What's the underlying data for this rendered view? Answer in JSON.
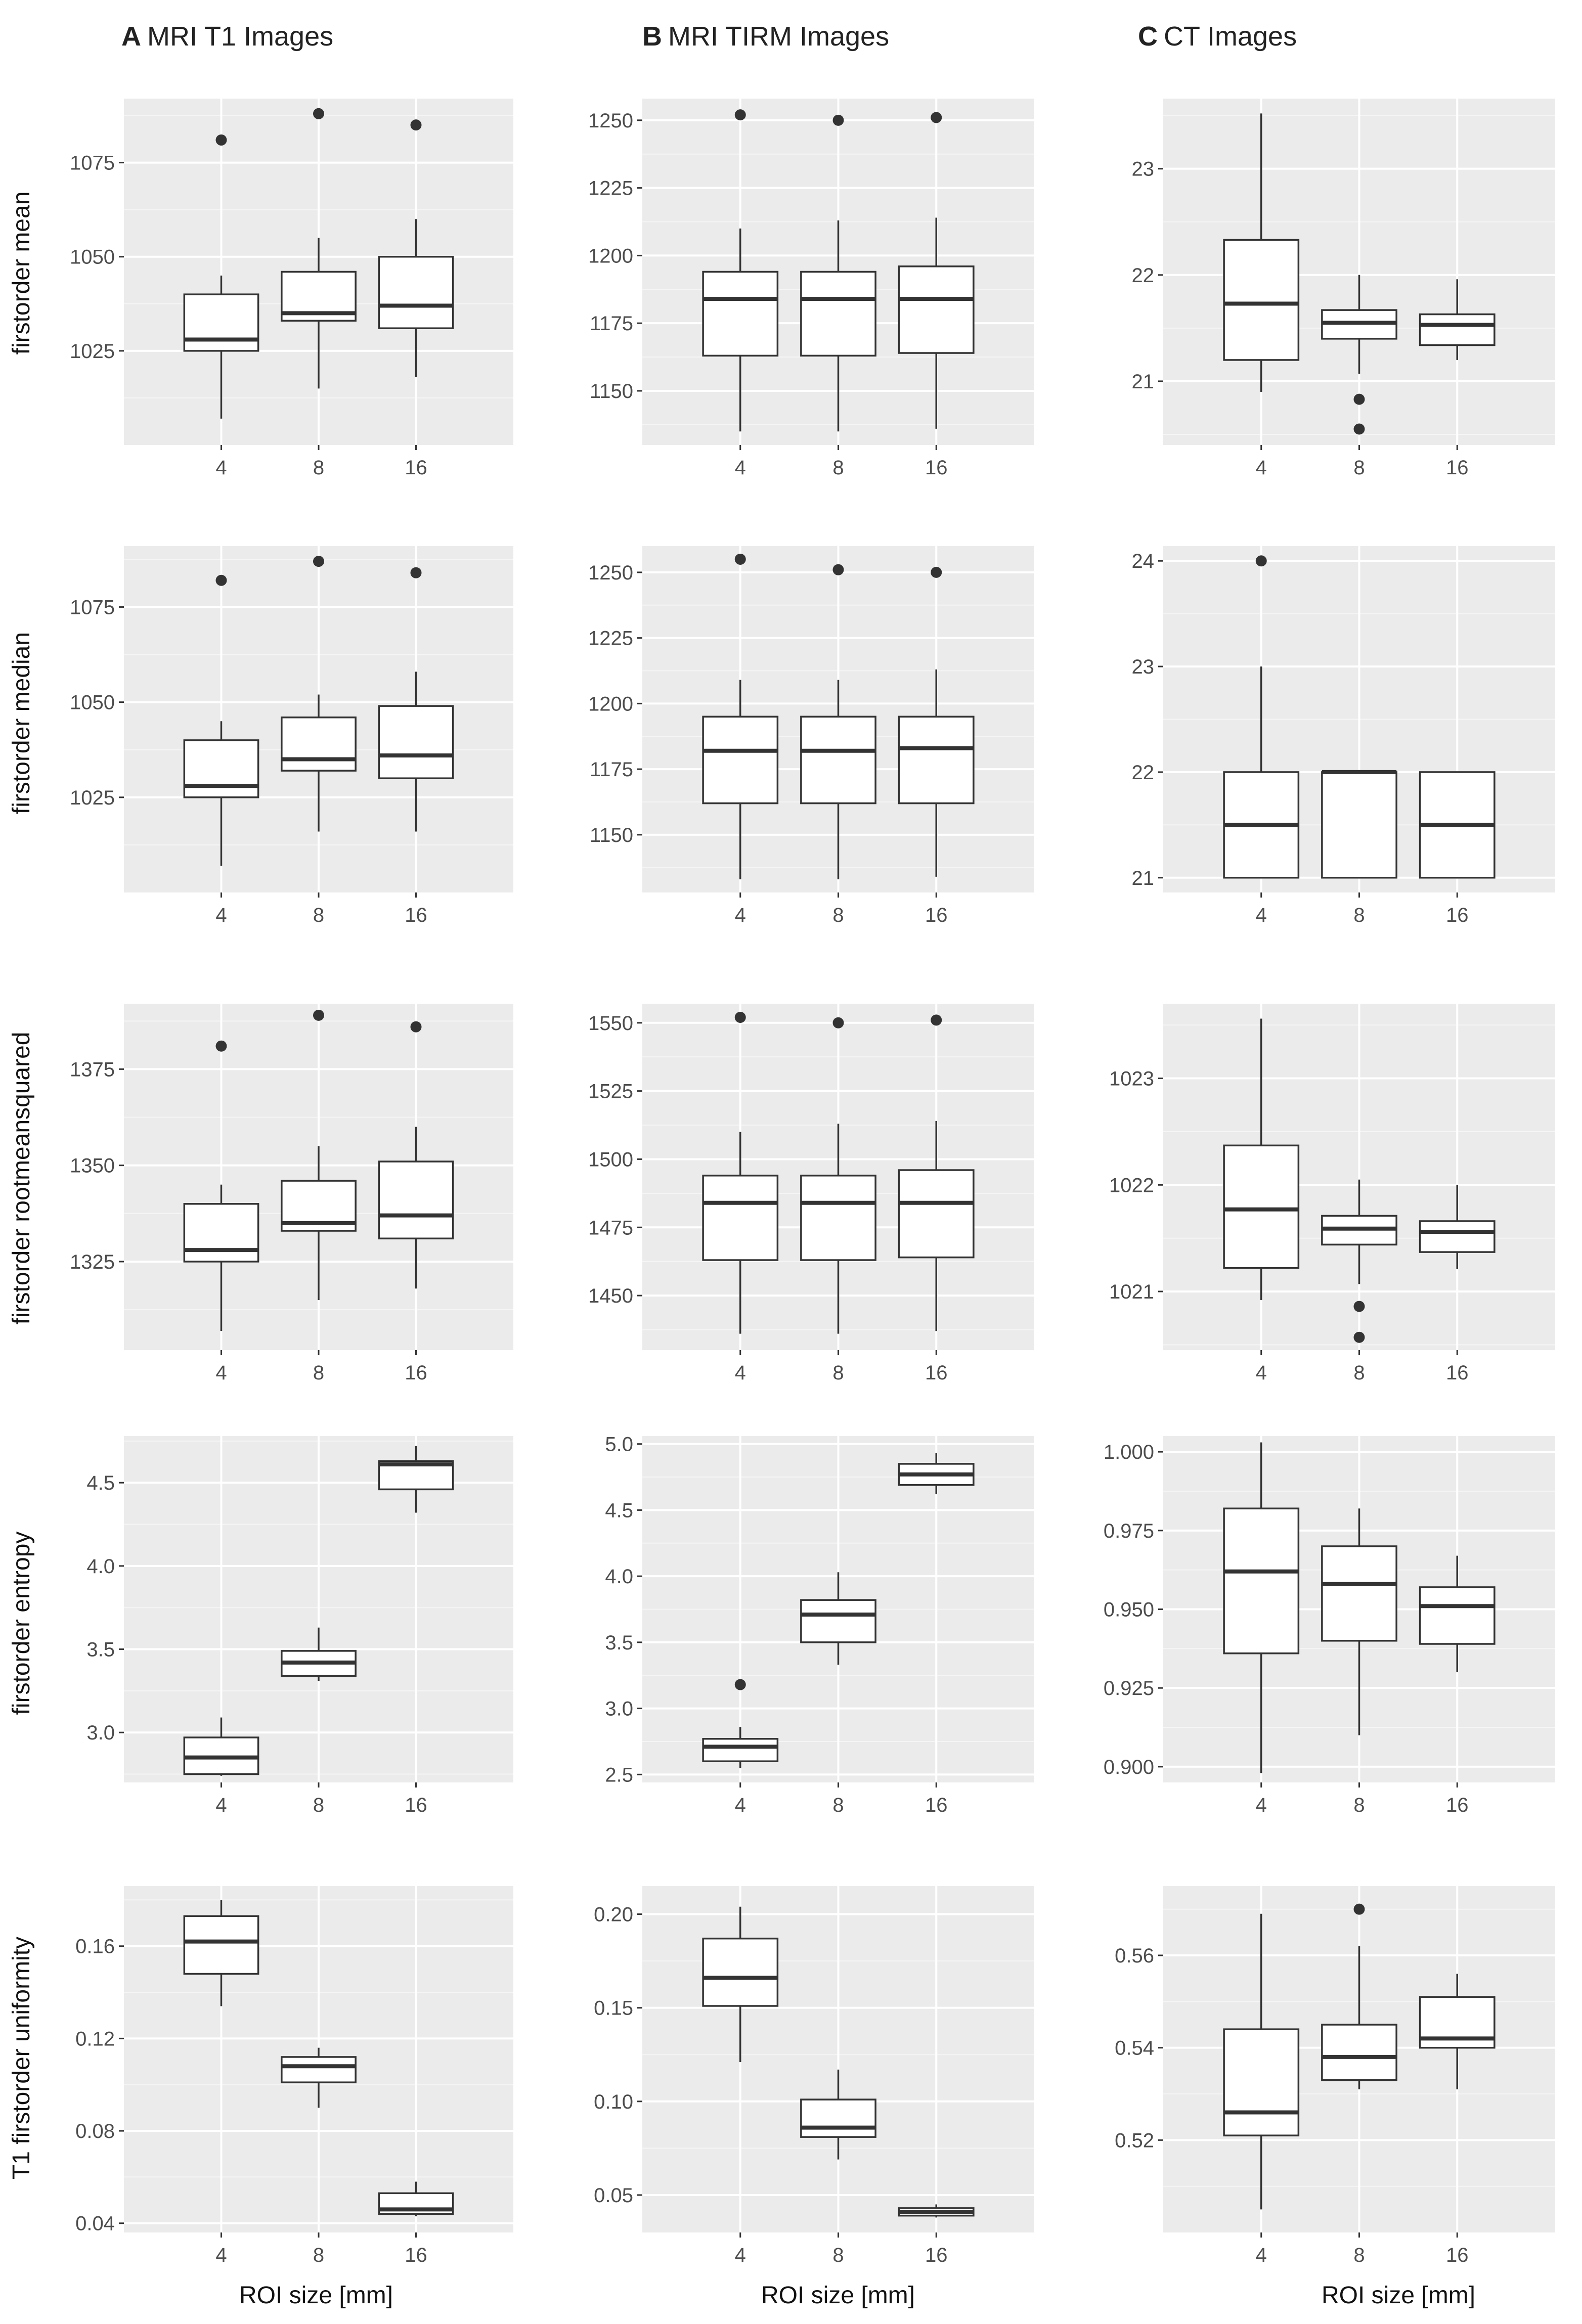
{
  "column_titles": [
    {
      "letter": "A",
      "text": "MRI T1 Images"
    },
    {
      "letter": "B",
      "text": "MRI TIRM Images"
    },
    {
      "letter": "C",
      "text": "CT Images"
    }
  ],
  "row_labels": [
    "firstorder mean",
    "firstorder median",
    "firstorder rootmeansquared",
    "firstorder entropy",
    "T1 firstorder uniformity"
  ],
  "x_axis_label": "ROI size [mm]",
  "chart_data": [
    {
      "type": "box",
      "column": "A",
      "row": "firstorder mean",
      "categories": [
        "4",
        "8",
        "16"
      ],
      "ylim": [
        1000,
        1092
      ],
      "yticks": [
        {
          "v": 1025,
          "label": "1025"
        },
        {
          "v": 1050,
          "label": "1050"
        },
        {
          "v": 1075,
          "label": "1075"
        }
      ],
      "boxes": [
        {
          "whisker_low": 1007,
          "q1": 1025,
          "median": 1028,
          "q3": 1040,
          "whisker_high": 1045,
          "outliers": [
            1081
          ]
        },
        {
          "whisker_low": 1015,
          "q1": 1033,
          "median": 1035,
          "q3": 1046,
          "whisker_high": 1055,
          "outliers": [
            1088
          ]
        },
        {
          "whisker_low": 1018,
          "q1": 1031,
          "median": 1037,
          "q3": 1050,
          "whisker_high": 1060,
          "outliers": [
            1085
          ]
        }
      ]
    },
    {
      "type": "box",
      "column": "B",
      "row": "firstorder mean",
      "categories": [
        "4",
        "8",
        "16"
      ],
      "ylim": [
        1130,
        1258
      ],
      "yticks": [
        {
          "v": 1150,
          "label": "1150"
        },
        {
          "v": 1175,
          "label": "1175"
        },
        {
          "v": 1200,
          "label": "1200"
        },
        {
          "v": 1225,
          "label": "1225"
        },
        {
          "v": 1250,
          "label": "1250"
        }
      ],
      "boxes": [
        {
          "whisker_low": 1135,
          "q1": 1163,
          "median": 1184,
          "q3": 1194,
          "whisker_high": 1210,
          "outliers": [
            1252
          ]
        },
        {
          "whisker_low": 1135,
          "q1": 1163,
          "median": 1184,
          "q3": 1194,
          "whisker_high": 1213,
          "outliers": [
            1250
          ]
        },
        {
          "whisker_low": 1136,
          "q1": 1164,
          "median": 1184,
          "q3": 1196,
          "whisker_high": 1214,
          "outliers": [
            1251
          ]
        }
      ]
    },
    {
      "type": "box",
      "column": "C",
      "row": "firstorder mean",
      "categories": [
        "4",
        "8",
        "16"
      ],
      "ylim": [
        20.4,
        23.66
      ],
      "yticks": [
        {
          "v": 21,
          "label": "21"
        },
        {
          "v": 22,
          "label": "22"
        },
        {
          "v": 23,
          "label": "23"
        }
      ],
      "boxes": [
        {
          "whisker_low": 20.9,
          "q1": 21.2,
          "median": 21.73,
          "q3": 22.33,
          "whisker_high": 23.52,
          "outliers": []
        },
        {
          "whisker_low": 21.07,
          "q1": 21.4,
          "median": 21.55,
          "q3": 21.67,
          "whisker_high": 22.0,
          "outliers": [
            20.83,
            20.55
          ]
        },
        {
          "whisker_low": 21.2,
          "q1": 21.34,
          "median": 21.53,
          "q3": 21.63,
          "whisker_high": 21.96,
          "outliers": []
        }
      ]
    },
    {
      "type": "box",
      "column": "A",
      "row": "firstorder median",
      "categories": [
        "4",
        "8",
        "16"
      ],
      "ylim": [
        1000,
        1091
      ],
      "yticks": [
        {
          "v": 1025,
          "label": "1025"
        },
        {
          "v": 1050,
          "label": "1050"
        },
        {
          "v": 1075,
          "label": "1075"
        }
      ],
      "boxes": [
        {
          "whisker_low": 1007,
          "q1": 1025,
          "median": 1028,
          "q3": 1040,
          "whisker_high": 1045,
          "outliers": [
            1082
          ]
        },
        {
          "whisker_low": 1016,
          "q1": 1032,
          "median": 1035,
          "q3": 1046,
          "whisker_high": 1052,
          "outliers": [
            1087
          ]
        },
        {
          "whisker_low": 1016,
          "q1": 1030,
          "median": 1036,
          "q3": 1049,
          "whisker_high": 1058,
          "outliers": [
            1084
          ]
        }
      ]
    },
    {
      "type": "box",
      "column": "B",
      "row": "firstorder median",
      "categories": [
        "4",
        "8",
        "16"
      ],
      "ylim": [
        1128,
        1260
      ],
      "yticks": [
        {
          "v": 1150,
          "label": "1150"
        },
        {
          "v": 1175,
          "label": "1175"
        },
        {
          "v": 1200,
          "label": "1200"
        },
        {
          "v": 1225,
          "label": "1225"
        },
        {
          "v": 1250,
          "label": "1250"
        }
      ],
      "boxes": [
        {
          "whisker_low": 1133,
          "q1": 1162,
          "median": 1182,
          "q3": 1195,
          "whisker_high": 1209,
          "outliers": [
            1255
          ]
        },
        {
          "whisker_low": 1133,
          "q1": 1162,
          "median": 1182,
          "q3": 1195,
          "whisker_high": 1209,
          "outliers": [
            1251
          ]
        },
        {
          "whisker_low": 1134,
          "q1": 1162,
          "median": 1183,
          "q3": 1195,
          "whisker_high": 1213,
          "outliers": [
            1250
          ]
        }
      ]
    },
    {
      "type": "box",
      "column": "C",
      "row": "firstorder median",
      "categories": [
        "4",
        "8",
        "16"
      ],
      "ylim": [
        20.86,
        24.14
      ],
      "yticks": [
        {
          "v": 21,
          "label": "21"
        },
        {
          "v": 22,
          "label": "22"
        },
        {
          "v": 23,
          "label": "23"
        },
        {
          "v": 24,
          "label": "24"
        }
      ],
      "boxes": [
        {
          "whisker_low": 21,
          "q1": 21,
          "median": 21.5,
          "q3": 22,
          "whisker_high": 23,
          "outliers": [
            24
          ]
        },
        {
          "whisker_low": 21,
          "q1": 21,
          "median": 22,
          "q3": 22,
          "whisker_high": 22,
          "outliers": []
        },
        {
          "whisker_low": 21,
          "q1": 21,
          "median": 21.5,
          "q3": 22,
          "whisker_high": 22,
          "outliers": []
        }
      ]
    },
    {
      "type": "box",
      "column": "A",
      "row": "firstorder rootmeansquared",
      "categories": [
        "4",
        "8",
        "16"
      ],
      "ylim": [
        1302,
        1392
      ],
      "yticks": [
        {
          "v": 1325,
          "label": "1325"
        },
        {
          "v": 1350,
          "label": "1350"
        },
        {
          "v": 1375,
          "label": "1375"
        }
      ],
      "boxes": [
        {
          "whisker_low": 1307,
          "q1": 1325,
          "median": 1328,
          "q3": 1340,
          "whisker_high": 1345,
          "outliers": [
            1381
          ]
        },
        {
          "whisker_low": 1315,
          "q1": 1333,
          "median": 1335,
          "q3": 1346,
          "whisker_high": 1355,
          "outliers": [
            1389
          ]
        },
        {
          "whisker_low": 1318,
          "q1": 1331,
          "median": 1337,
          "q3": 1351,
          "whisker_high": 1360,
          "outliers": [
            1386
          ]
        }
      ]
    },
    {
      "type": "box",
      "column": "B",
      "row": "firstorder rootmeansquared",
      "categories": [
        "4",
        "8",
        "16"
      ],
      "ylim": [
        1430,
        1557
      ],
      "yticks": [
        {
          "v": 1450,
          "label": "1450"
        },
        {
          "v": 1475,
          "label": "1475"
        },
        {
          "v": 1500,
          "label": "1500"
        },
        {
          "v": 1525,
          "label": "1525"
        },
        {
          "v": 1550,
          "label": "1550"
        }
      ],
      "boxes": [
        {
          "whisker_low": 1436,
          "q1": 1463,
          "median": 1484,
          "q3": 1494,
          "whisker_high": 1510,
          "outliers": [
            1552
          ]
        },
        {
          "whisker_low": 1436,
          "q1": 1463,
          "median": 1484,
          "q3": 1494,
          "whisker_high": 1513,
          "outliers": [
            1550
          ]
        },
        {
          "whisker_low": 1437,
          "q1": 1464,
          "median": 1484,
          "q3": 1496,
          "whisker_high": 1514,
          "outliers": [
            1551
          ]
        }
      ]
    },
    {
      "type": "box",
      "column": "C",
      "row": "firstorder rootmeansquared",
      "categories": [
        "4",
        "8",
        "16"
      ],
      "ylim": [
        1020.45,
        1023.7
      ],
      "yticks": [
        {
          "v": 1021,
          "label": "1021"
        },
        {
          "v": 1022,
          "label": "1022"
        },
        {
          "v": 1023,
          "label": "1023"
        }
      ],
      "boxes": [
        {
          "whisker_low": 1020.92,
          "q1": 1021.22,
          "median": 1021.77,
          "q3": 1022.37,
          "whisker_high": 1023.56,
          "outliers": []
        },
        {
          "whisker_low": 1021.07,
          "q1": 1021.44,
          "median": 1021.59,
          "q3": 1021.71,
          "whisker_high": 1022.05,
          "outliers": [
            1020.86,
            1020.57
          ]
        },
        {
          "whisker_low": 1021.21,
          "q1": 1021.37,
          "median": 1021.56,
          "q3": 1021.66,
          "whisker_high": 1022.0,
          "outliers": []
        }
      ]
    },
    {
      "type": "box",
      "column": "A",
      "row": "firstorder entropy",
      "categories": [
        "4",
        "8",
        "16"
      ],
      "ylim": [
        2.7,
        4.78
      ],
      "yticks": [
        {
          "v": 3.0,
          "label": "3.0"
        },
        {
          "v": 3.5,
          "label": "3.5"
        },
        {
          "v": 4.0,
          "label": "4.0"
        },
        {
          "v": 4.5,
          "label": "4.5"
        }
      ],
      "boxes": [
        {
          "whisker_low": 2.74,
          "q1": 2.75,
          "median": 2.85,
          "q3": 2.97,
          "whisker_high": 3.09,
          "outliers": []
        },
        {
          "whisker_low": 3.31,
          "q1": 3.34,
          "median": 3.42,
          "q3": 3.49,
          "whisker_high": 3.63,
          "outliers": []
        },
        {
          "whisker_low": 4.32,
          "q1": 4.46,
          "median": 4.61,
          "q3": 4.63,
          "whisker_high": 4.72,
          "outliers": []
        }
      ]
    },
    {
      "type": "box",
      "column": "B",
      "row": "firstorder entropy",
      "categories": [
        "4",
        "8",
        "16"
      ],
      "ylim": [
        2.44,
        5.06
      ],
      "yticks": [
        {
          "v": 2.5,
          "label": "2.5"
        },
        {
          "v": 3.0,
          "label": "3.0"
        },
        {
          "v": 3.5,
          "label": "3.5"
        },
        {
          "v": 4.0,
          "label": "4.0"
        },
        {
          "v": 4.5,
          "label": "4.5"
        },
        {
          "v": 5.0,
          "label": "5.0"
        }
      ],
      "boxes": [
        {
          "whisker_low": 2.55,
          "q1": 2.6,
          "median": 2.71,
          "q3": 2.77,
          "whisker_high": 2.86,
          "outliers": [
            3.18
          ]
        },
        {
          "whisker_low": 3.33,
          "q1": 3.5,
          "median": 3.71,
          "q3": 3.82,
          "whisker_high": 4.03,
          "outliers": []
        },
        {
          "whisker_low": 4.62,
          "q1": 4.69,
          "median": 4.77,
          "q3": 4.85,
          "whisker_high": 4.93,
          "outliers": []
        }
      ]
    },
    {
      "type": "box",
      "column": "C",
      "row": "firstorder entropy",
      "categories": [
        "4",
        "8",
        "16"
      ],
      "ylim": [
        0.895,
        1.005
      ],
      "yticks": [
        {
          "v": 0.9,
          "label": "0.900"
        },
        {
          "v": 0.925,
          "label": "0.925"
        },
        {
          "v": 0.95,
          "label": "0.950"
        },
        {
          "v": 0.975,
          "label": "0.975"
        },
        {
          "v": 1.0,
          "label": "1.000"
        }
      ],
      "boxes": [
        {
          "whisker_low": 0.898,
          "q1": 0.936,
          "median": 0.962,
          "q3": 0.982,
          "whisker_high": 1.003,
          "outliers": []
        },
        {
          "whisker_low": 0.91,
          "q1": 0.94,
          "median": 0.958,
          "q3": 0.97,
          "whisker_high": 0.982,
          "outliers": []
        },
        {
          "whisker_low": 0.93,
          "q1": 0.939,
          "median": 0.951,
          "q3": 0.957,
          "whisker_high": 0.967,
          "outliers": []
        }
      ]
    },
    {
      "type": "box",
      "column": "A",
      "row": "T1 firstorder uniformity",
      "categories": [
        "4",
        "8",
        "16"
      ],
      "ylim": [
        0.036,
        0.186
      ],
      "yticks": [
        {
          "v": 0.04,
          "label": "0.04"
        },
        {
          "v": 0.08,
          "label": "0.08"
        },
        {
          "v": 0.12,
          "label": "0.12"
        },
        {
          "v": 0.16,
          "label": "0.16"
        }
      ],
      "boxes": [
        {
          "whisker_low": 0.134,
          "q1": 0.148,
          "median": 0.162,
          "q3": 0.173,
          "whisker_high": 0.18,
          "outliers": []
        },
        {
          "whisker_low": 0.09,
          "q1": 0.101,
          "median": 0.108,
          "q3": 0.112,
          "whisker_high": 0.116,
          "outliers": []
        },
        {
          "whisker_low": 0.043,
          "q1": 0.044,
          "median": 0.046,
          "q3": 0.053,
          "whisker_high": 0.058,
          "outliers": []
        }
      ]
    },
    {
      "type": "box",
      "column": "B",
      "row": "T1 firstorder uniformity",
      "categories": [
        "4",
        "8",
        "16"
      ],
      "ylim": [
        0.03,
        0.215
      ],
      "yticks": [
        {
          "v": 0.05,
          "label": "0.05"
        },
        {
          "v": 0.1,
          "label": "0.10"
        },
        {
          "v": 0.15,
          "label": "0.15"
        },
        {
          "v": 0.2,
          "label": "0.20"
        }
      ],
      "boxes": [
        {
          "whisker_low": 0.121,
          "q1": 0.151,
          "median": 0.166,
          "q3": 0.187,
          "whisker_high": 0.204,
          "outliers": []
        },
        {
          "whisker_low": 0.069,
          "q1": 0.081,
          "median": 0.086,
          "q3": 0.101,
          "whisker_high": 0.117,
          "outliers": []
        },
        {
          "whisker_low": 0.038,
          "q1": 0.039,
          "median": 0.041,
          "q3": 0.043,
          "whisker_high": 0.045,
          "outliers": []
        }
      ]
    },
    {
      "type": "box",
      "column": "C",
      "row": "T1 firstorder uniformity",
      "categories": [
        "4",
        "8",
        "16"
      ],
      "ylim": [
        0.5,
        0.575
      ],
      "yticks": [
        {
          "v": 0.52,
          "label": "0.52"
        },
        {
          "v": 0.54,
          "label": "0.54"
        },
        {
          "v": 0.56,
          "label": "0.56"
        }
      ],
      "boxes": [
        {
          "whisker_low": 0.505,
          "q1": 0.521,
          "median": 0.526,
          "q3": 0.544,
          "whisker_high": 0.569,
          "outliers": []
        },
        {
          "whisker_low": 0.531,
          "q1": 0.533,
          "median": 0.538,
          "q3": 0.545,
          "whisker_high": 0.562,
          "outliers": [
            0.57
          ]
        },
        {
          "whisker_low": 0.531,
          "q1": 0.54,
          "median": 0.542,
          "q3": 0.551,
          "whisker_high": 0.556,
          "outliers": []
        }
      ]
    }
  ]
}
